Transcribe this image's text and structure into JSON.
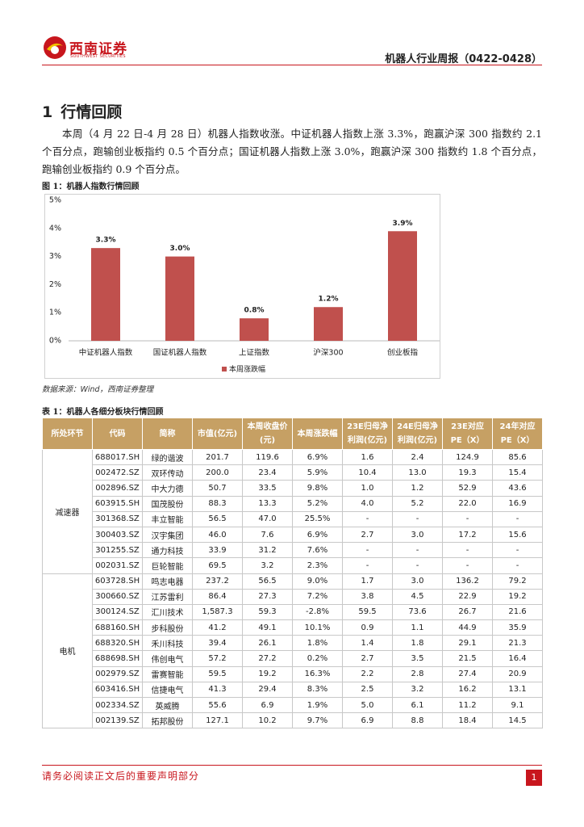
{
  "header": {
    "logo_text": "西南证券",
    "logo_sub": "SOUTHWEST SECURITIES",
    "report_title": "机器人行业周报（0422-0428）"
  },
  "section": {
    "number": "1",
    "title": "行情回顾"
  },
  "paragraph": "本周（4 月 22 日-4 月 28 日）机器人指数收涨。中证机器人指数上涨 3.3%，跑赢沪深 300 指数约 2.1 个百分点，跑输创业板指约 0.5 个百分点；国证机器人指数上涨 3.0%，跑赢沪深 300 指数约 1.8 个百分点，跑输创业板指约 0.9 个百分点。",
  "figure_caption": "图 1：机器人指数行情回顾",
  "chart_data": {
    "type": "bar",
    "categories": [
      "中证机器人指数",
      "国证机器人指数",
      "上证指数",
      "沪深300",
      "创业板指"
    ],
    "series": [
      {
        "name": "本周涨跌幅",
        "color": "#c0504d",
        "values": [
          3.3,
          3.0,
          0.8,
          1.2,
          3.9
        ],
        "value_labels": [
          "3.3%",
          "3.0%",
          "0.8%",
          "1.2%",
          "3.9%"
        ]
      }
    ],
    "ylim": [
      0,
      5
    ],
    "yticks": [
      {
        "value": 0,
        "label": "0%"
      },
      {
        "value": 1,
        "label": "1%"
      },
      {
        "value": 2,
        "label": "2%"
      },
      {
        "value": 3,
        "label": "3%"
      },
      {
        "value": 4,
        "label": "4%"
      },
      {
        "value": 5,
        "label": "5%"
      }
    ],
    "grid": false,
    "legend": "bottom"
  },
  "source": "数据来源：Wind，西南证券整理",
  "table_caption": "表 1：机器人各细分板块行情回顾",
  "table": {
    "columns": [
      "所处环节",
      "代码",
      "简称",
      "市值(亿元)",
      "本周收盘价(元)",
      "本周涨跌幅",
      "23E归母净利润(亿元)",
      "24E归母净利润(亿元)",
      "23E对应PE（X）",
      "24年对应PE（X）"
    ],
    "groups": [
      {
        "name": "减速器",
        "rows": [
          [
            "688017.SH",
            "绿的谐波",
            "201.7",
            "119.6",
            "6.9%",
            "1.6",
            "2.4",
            "124.9",
            "85.6"
          ],
          [
            "002472.SZ",
            "双环传动",
            "200.0",
            "23.4",
            "5.9%",
            "10.4",
            "13.0",
            "19.3",
            "15.4"
          ],
          [
            "002896.SZ",
            "中大力德",
            "50.7",
            "33.5",
            "9.8%",
            "1.0",
            "1.2",
            "52.9",
            "43.6"
          ],
          [
            "603915.SH",
            "国茂股份",
            "88.3",
            "13.3",
            "5.2%",
            "4.0",
            "5.2",
            "22.0",
            "16.9"
          ],
          [
            "301368.SZ",
            "丰立智能",
            "56.5",
            "47.0",
            "25.5%",
            "-",
            "-",
            "-",
            "-"
          ],
          [
            "300403.SZ",
            "汉宇集团",
            "46.0",
            "7.6",
            "6.9%",
            "2.7",
            "3.0",
            "17.2",
            "15.6"
          ],
          [
            "301255.SZ",
            "通力科技",
            "33.9",
            "31.2",
            "7.6%",
            "-",
            "-",
            "-",
            "-"
          ],
          [
            "002031.SZ",
            "巨轮智能",
            "69.5",
            "3.2",
            "2.3%",
            "-",
            "-",
            "-",
            "-"
          ]
        ]
      },
      {
        "name": "电机",
        "rows": [
          [
            "603728.SH",
            "鸣志电器",
            "237.2",
            "56.5",
            "9.0%",
            "1.7",
            "3.0",
            "136.2",
            "79.2"
          ],
          [
            "300660.SZ",
            "江苏雷利",
            "86.4",
            "27.3",
            "7.2%",
            "3.8",
            "4.5",
            "22.9",
            "19.2"
          ],
          [
            "300124.SZ",
            "汇川技术",
            "1,587.3",
            "59.3",
            "-2.8%",
            "59.5",
            "73.6",
            "26.7",
            "21.6"
          ],
          [
            "688160.SH",
            "步科股份",
            "41.2",
            "49.1",
            "10.1%",
            "0.9",
            "1.1",
            "44.9",
            "35.9"
          ],
          [
            "688320.SH",
            "禾川科技",
            "39.4",
            "26.1",
            "1.8%",
            "1.4",
            "1.8",
            "29.1",
            "21.3"
          ],
          [
            "688698.SH",
            "伟创电气",
            "57.2",
            "27.2",
            "0.2%",
            "2.7",
            "3.5",
            "21.5",
            "16.4"
          ],
          [
            "002979.SZ",
            "雷赛智能",
            "59.5",
            "19.2",
            "16.3%",
            "2.2",
            "2.8",
            "27.4",
            "20.9"
          ],
          [
            "603416.SH",
            "信捷电气",
            "41.3",
            "29.4",
            "8.3%",
            "2.5",
            "3.2",
            "16.2",
            "13.1"
          ],
          [
            "002334.SZ",
            "英威腾",
            "55.6",
            "6.9",
            "1.9%",
            "5.0",
            "6.1",
            "11.2",
            "9.1"
          ],
          [
            "002139.SZ",
            "拓邦股份",
            "127.1",
            "10.2",
            "9.7%",
            "6.9",
            "8.8",
            "18.4",
            "14.5"
          ]
        ]
      }
    ]
  },
  "footer": {
    "disclaimer": "请务必阅读正文后的重要声明部分",
    "page": "1"
  }
}
